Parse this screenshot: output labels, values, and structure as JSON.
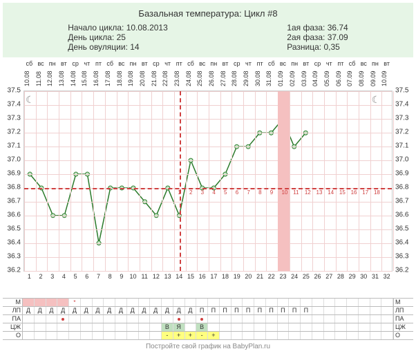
{
  "title": "Базальная температура: Цикл #8",
  "info_left": [
    "Начало цикла: 10.08.2013",
    "День цикла: 25",
    "День овуляции: 14"
  ],
  "info_right": [
    "1ая фаза: 36.74",
    "2ая фаза: 37.09",
    "Разница: 0,35"
  ],
  "footer": "Постройте свой график на BabyPlan.ru",
  "chart": {
    "ylim": [
      36.2,
      37.5
    ],
    "ytick_step": 0.1,
    "num_days": 32,
    "coverline": 36.8,
    "ovulation_day": 14,
    "highlight_day": 23,
    "moon_days": [
      1,
      31
    ],
    "line_color": "#2a7a2a",
    "point_fill": "#c8e8c8",
    "grid_color": "#f0d0d0",
    "dash_color": "#d04040",
    "highlight_color": "#f5c0c0",
    "temps": [
      36.9,
      36.8,
      36.6,
      36.6,
      36.9,
      36.9,
      36.4,
      36.8,
      36.8,
      36.8,
      36.7,
      36.6,
      36.8,
      36.6,
      37.0,
      36.8,
      36.8,
      36.9,
      37.1,
      37.1,
      37.2,
      37.2,
      37.3,
      37.1,
      37.2
    ],
    "red_nums": [
      1,
      2,
      3,
      4,
      5,
      6,
      7,
      8,
      9,
      10,
      11,
      12,
      13,
      14,
      15,
      16,
      17,
      18
    ],
    "dates": [
      "10.08",
      "11.08",
      "12.08",
      "13.08",
      "14.08",
      "15.08",
      "16.08",
      "17.08",
      "18.08",
      "19.08",
      "20.08",
      "21.08",
      "22.08",
      "23.08",
      "24.08",
      "25.08",
      "26.08",
      "27.08",
      "28.08",
      "29.08",
      "30.08",
      "31.08",
      "01.09",
      "02.09",
      "03.09",
      "04.09",
      "05.09",
      "06.09",
      "07.09",
      "08.09",
      "09.09",
      "10.09"
    ],
    "weekdays": [
      "сб",
      "вс",
      "пн",
      "вт",
      "ср",
      "чт",
      "пт",
      "сб",
      "вс",
      "пн",
      "вт",
      "ср",
      "чт",
      "пт",
      "сб",
      "вс",
      "пн",
      "вт",
      "ср",
      "чт",
      "пт",
      "сб",
      "вс",
      "пн",
      "вт",
      "ср",
      "чт",
      "пт",
      "сб",
      "вс",
      "пн",
      "вт"
    ]
  },
  "table": {
    "rows": [
      "М",
      "ЛП",
      "ПА",
      "ЦЖ",
      "О"
    ],
    "m": [
      "pink",
      "pink",
      "pink",
      "pink",
      "pink-star",
      "",
      "",
      "",
      "",
      "",
      "",
      "",
      "",
      "",
      "",
      "",
      "",
      "",
      "",
      "",
      "",
      "",
      "",
      "",
      "",
      "",
      "",
      "",
      "",
      "",
      "",
      ""
    ],
    "lp": [
      "Д",
      "Д",
      "Д",
      "Д",
      "Д",
      "Д",
      "Д",
      "Д",
      "Д",
      "Д",
      "Д",
      "Д",
      "Д",
      "Д",
      "Д",
      "П",
      "П",
      "П",
      "П",
      "П",
      "П",
      "П",
      "П",
      "П",
      "П",
      "",
      "",
      "",
      "",
      "",
      "",
      ""
    ],
    "pa": [
      "",
      "",
      "",
      "dot",
      "",
      "",
      "",
      "",
      "",
      "",
      "",
      "",
      "",
      "dot",
      "",
      "dot",
      "",
      "",
      "",
      "",
      "",
      "",
      "",
      "",
      "",
      "",
      "",
      "",
      "",
      "",
      "",
      ""
    ],
    "cj": [
      "",
      "",
      "",
      "",
      "",
      "",
      "",
      "",
      "",
      "",
      "",
      "",
      "В",
      "Я",
      "",
      "В",
      "",
      "",
      "",
      "",
      "",
      "",
      "",
      "",
      "",
      "",
      "",
      "",
      "",
      "",
      "",
      ""
    ],
    "o": [
      "",
      "",
      "",
      "",
      "",
      "",
      "",
      "",
      "",
      "",
      "",
      "",
      "y-",
      "y+",
      "y+",
      "y-",
      "y+",
      "",
      "",
      "",
      "",
      "",
      "",
      "",
      "",
      "",
      "",
      "",
      "",
      "",
      "",
      ""
    ]
  }
}
